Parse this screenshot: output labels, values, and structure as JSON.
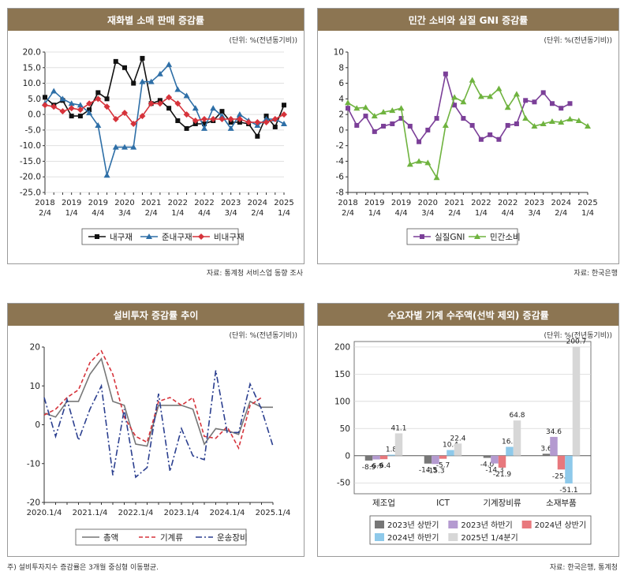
{
  "charts": [
    {
      "title": "재화별 소매 판매 증감률",
      "unit": "(단위: %(전년동기비))",
      "source": "자료: 통계청 서비스업 동향 조사",
      "chart_data": {
        "type": "line",
        "ylim": [
          -25,
          20
        ],
        "yticks": [
          20.0,
          15.0,
          10.0,
          5.0,
          0.0,
          -5.0,
          -10.0,
          -15.0,
          -20.0,
          -25.0
        ],
        "ytick_labels": [
          "20.0",
          "15.0",
          "10.0",
          "5.0",
          "0.0",
          "-5.0",
          "-10.0",
          "-15.0",
          "-20.0",
          "-25.0"
        ],
        "n": 28,
        "xticks": [
          {
            "i": 0,
            "top": "2018",
            "bottom": "2/4"
          },
          {
            "i": 3,
            "top": "2019",
            "bottom": "1/4"
          },
          {
            "i": 6,
            "top": "2019",
            "bottom": "4/4"
          },
          {
            "i": 9,
            "top": "2020",
            "bottom": "3/4"
          },
          {
            "i": 12,
            "top": "2021",
            "bottom": "2/4"
          },
          {
            "i": 15,
            "top": "2022",
            "bottom": "1/4"
          },
          {
            "i": 18,
            "top": "2022",
            "bottom": "4/4"
          },
          {
            "i": 21,
            "top": "2023",
            "bottom": "3/4"
          },
          {
            "i": 24,
            "top": "2024",
            "bottom": "2/4"
          },
          {
            "i": 27,
            "top": "2025",
            "bottom": "1/4"
          }
        ],
        "grid": true,
        "legend": "bottom",
        "series": [
          {
            "name": "내구재",
            "color": "#111111",
            "marker": "square",
            "dash": "",
            "values": [
              5.5,
              3.0,
              4.5,
              -0.5,
              -0.5,
              1.5,
              7.0,
              5.0,
              17.0,
              15.0,
              10.0,
              18.0,
              3.5,
              4.5,
              2.0,
              -2.0,
              -4.5,
              -3.0,
              -3.0,
              -2.0,
              1.0,
              -2.5,
              -2.5,
              -3.0,
              -7.0,
              -0.5,
              -4.0,
              3.0
            ]
          },
          {
            "name": "준내구재",
            "color": "#2e6fa7",
            "marker": "triangle",
            "dash": "",
            "values": [
              3.5,
              7.5,
              5.0,
              3.5,
              3.0,
              0.5,
              -3.5,
              -19.5,
              -10.5,
              -10.5,
              -10.5,
              10.5,
              10.5,
              13.0,
              16.0,
              8.0,
              6.0,
              2.0,
              -4.5,
              2.0,
              -0.5,
              -4.5,
              0.0,
              -2.0,
              -3.5,
              -1.5,
              -1.5,
              -3.0
            ]
          },
          {
            "name": "비내구재",
            "color": "#d6333b",
            "marker": "diamond",
            "dash": "",
            "values": [
              3.0,
              2.5,
              1.0,
              2.0,
              1.5,
              3.5,
              5.0,
              2.5,
              -1.5,
              0.5,
              -3.0,
              -0.5,
              3.5,
              3.5,
              5.5,
              3.5,
              0.0,
              -2.0,
              -1.5,
              -1.5,
              -1.5,
              -1.5,
              -1.5,
              -2.5,
              -2.5,
              -2.5,
              -1.5,
              0.0
            ]
          }
        ]
      }
    },
    {
      "title": "민간 소비와 실질 GNI 증감률",
      "unit": "(단위: %(전년동기비))",
      "source": "자료: 한국은행",
      "chart_data": {
        "type": "line",
        "ylim": [
          -8,
          10
        ],
        "yticks": [
          10,
          8,
          6,
          4,
          2,
          0,
          -2,
          -4,
          -6,
          -8
        ],
        "ytick_labels": [
          "10",
          "8",
          "6",
          "4",
          "2",
          "0",
          "-2",
          "-4",
          "-6",
          "-8"
        ],
        "n": 28,
        "xticks": [
          {
            "i": 0,
            "top": "2018",
            "bottom": "2/4"
          },
          {
            "i": 3,
            "top": "2019",
            "bottom": "1/4"
          },
          {
            "i": 6,
            "top": "2019",
            "bottom": "4/4"
          },
          {
            "i": 9,
            "top": "2020",
            "bottom": "3/4"
          },
          {
            "i": 12,
            "top": "2021",
            "bottom": "2/4"
          },
          {
            "i": 15,
            "top": "2022",
            "bottom": "1/4"
          },
          {
            "i": 18,
            "top": "2022",
            "bottom": "4/4"
          },
          {
            "i": 21,
            "top": "2023",
            "bottom": "3/4"
          },
          {
            "i": 24,
            "top": "2024",
            "bottom": "2/4"
          },
          {
            "i": 27,
            "top": "2025",
            "bottom": "1/4"
          }
        ],
        "grid": false,
        "legend": "bottom",
        "series": [
          {
            "name": "실질GNI",
            "color": "#7b3f98",
            "marker": "square",
            "dash": "",
            "values": [
              2.8,
              0.6,
              1.8,
              -0.2,
              0.5,
              0.8,
              1.5,
              0.5,
              -1.5,
              0.0,
              1.5,
              7.2,
              3.2,
              1.5,
              0.6,
              -1.2,
              -0.6,
              -1.2,
              0.6,
              0.8,
              3.8,
              3.6,
              4.8,
              3.4,
              2.8,
              3.4,
              null,
              null
            ]
          },
          {
            "name": "민간소비",
            "color": "#6fb33f",
            "marker": "triangle",
            "dash": "",
            "values": [
              3.5,
              2.8,
              2.9,
              1.8,
              2.3,
              2.5,
              2.8,
              -4.4,
              -4.0,
              -4.2,
              -6.1,
              0.6,
              4.2,
              3.6,
              6.4,
              4.3,
              4.3,
              5.3,
              2.9,
              4.6,
              1.5,
              0.5,
              0.8,
              1.1,
              1.0,
              1.4,
              1.2,
              0.5
            ]
          }
        ]
      }
    },
    {
      "title": "설비투자 증감률 추이",
      "unit": "(단위: %(전년동기비))",
      "source": "주) 설비투자지수 증감률은 3개월 중심형 이동평균.",
      "chart_data": {
        "type": "line",
        "ylim": [
          -20,
          20
        ],
        "yticks": [
          20,
          10,
          0,
          -10,
          -20
        ],
        "ytick_labels": [
          "20",
          "10",
          "0",
          "-10",
          "-20"
        ],
        "n": 21,
        "xticks": [
          {
            "i": 0,
            "top": "2020.1/4",
            "bottom": ""
          },
          {
            "i": 4,
            "top": "2021.1/4",
            "bottom": ""
          },
          {
            "i": 8,
            "top": "2022.1/4",
            "bottom": ""
          },
          {
            "i": 12,
            "top": "2023.1/4",
            "bottom": ""
          },
          {
            "i": 16,
            "top": "2024.1/4",
            "bottom": ""
          },
          {
            "i": 20,
            "top": "2025.1/4",
            "bottom": ""
          }
        ],
        "grid": false,
        "legend": "bottom",
        "series": [
          {
            "name": "총액",
            "color": "#777777",
            "marker": "none",
            "dash": "",
            "values": [
              3.0,
              2.0,
              6.0,
              6.0,
              13.0,
              17.0,
              6.0,
              5.0,
              -5.0,
              -5.5,
              5.0,
              5.0,
              5.0,
              4.0,
              -5.0,
              -1.0,
              -1.5,
              -2.5,
              6.0,
              4.5,
              4.5
            ]
          },
          {
            "name": "기계류",
            "color": "#d6333b",
            "marker": "none",
            "dash": "5,3",
            "values": [
              2.5,
              4.0,
              7.0,
              9.0,
              16.0,
              19.0,
              13.0,
              2.0,
              -3.0,
              -4.5,
              6.0,
              7.0,
              5.0,
              7.0,
              -3.0,
              -3.5,
              -0.5,
              -6.0,
              5.0,
              7.0,
              null
            ]
          },
          {
            "name": "운송장비",
            "color": "#2b3f8f",
            "marker": "none",
            "dash": "8,3,2,3",
            "values": [
              7.0,
              -3.0,
              6.5,
              -4.0,
              4.0,
              10.0,
              -13.0,
              4.0,
              -13.5,
              -11.0,
              8.0,
              -12.0,
              -1.0,
              -8.0,
              -9.0,
              14.0,
              -2.0,
              -2.0,
              10.5,
              4.0,
              -5.5
            ]
          }
        ]
      }
    },
    {
      "title": "수요자별 기계 수주액(선박 제외) 증감률",
      "unit": "(단위: %(전년동기비))",
      "source": "자료: 한국은행, 통계청",
      "chart_data": {
        "type": "bar",
        "ylim": [
          -70,
          210
        ],
        "yticks": [
          200,
          150,
          100,
          50,
          0,
          -50
        ],
        "ytick_labels": [
          "200",
          "150",
          "100",
          "50",
          "0",
          "-50"
        ],
        "categories": [
          "제조업",
          "ICT",
          "기계장비류",
          "소재부품"
        ],
        "legend": "bottom",
        "series": [
          {
            "name": "2023년 상반기",
            "color": "#777777",
            "values": [
              -8.9,
              -14.5,
              -4.0,
              3.6
            ],
            "labels": [
              "-8.9",
              "-14.5",
              "-4.0",
              "3.6"
            ]
          },
          {
            "name": "2023년 하반기",
            "color": "#b49ad0",
            "values": [
              -6.9,
              -15.3,
              -14.3,
              34.6
            ],
            "labels": [
              "-6.9",
              "-15.3",
              "-14.3",
              "34.6"
            ]
          },
          {
            "name": "2024년 상반기",
            "color": "#e8787d",
            "values": [
              -6.4,
              -5.7,
              -21.9,
              -25.4
            ],
            "labels": [
              "-6.4",
              "-5.7",
              "-21.9",
              "-25.4"
            ]
          },
          {
            "name": "2024년 하반기",
            "color": "#8ec9ea",
            "values": [
              1.8,
              10.4,
              16.3,
              -51.1
            ],
            "labels": [
              "1.8",
              "10.4",
              "16.3",
              "-51.1"
            ]
          },
          {
            "name": "2025년 1/4분기",
            "color": "#d7d7d7",
            "values": [
              41.1,
              22.4,
              64.8,
              200.7
            ],
            "labels": [
              "41.1",
              "22.4",
              "64.8",
              "200.7"
            ]
          }
        ]
      }
    }
  ]
}
